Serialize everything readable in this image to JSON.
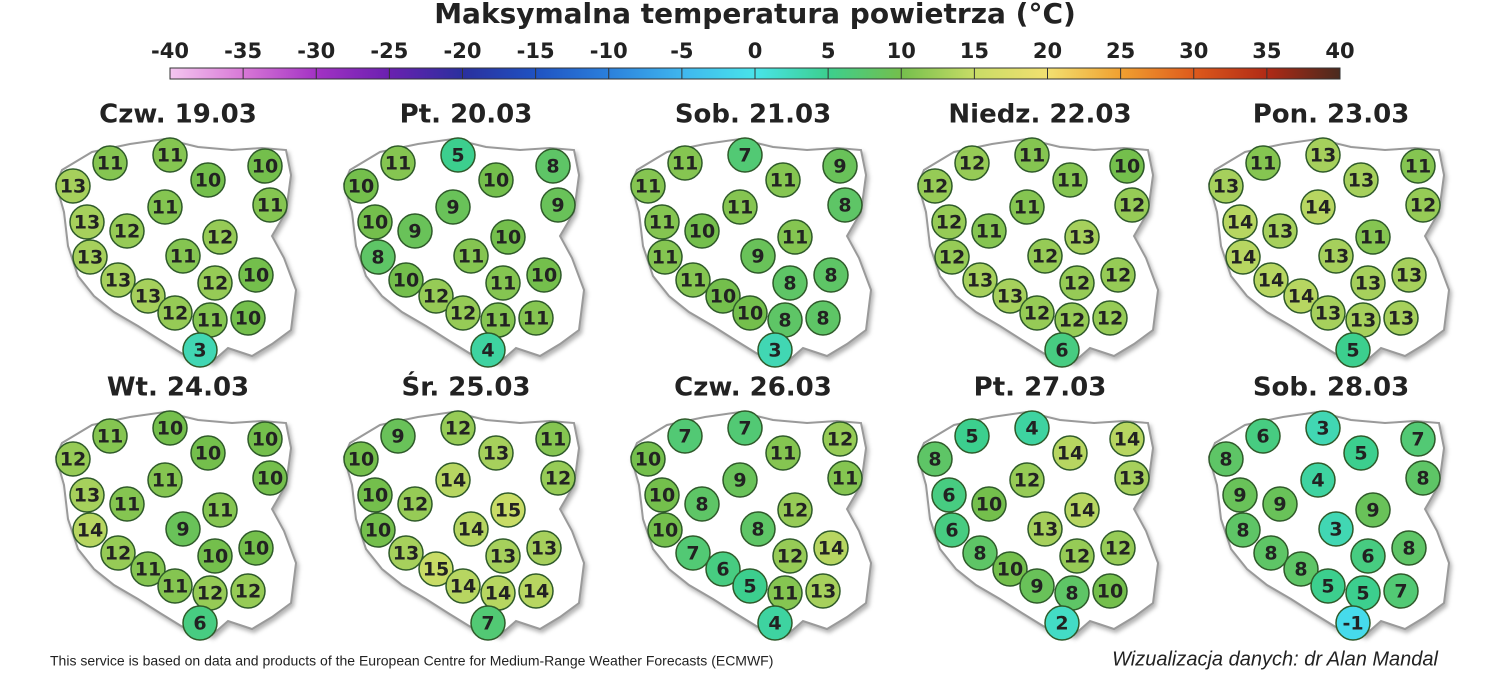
{
  "title": "Maksymalna temperatura powietrza (°C)",
  "colorbar": {
    "lim": [
      -40,
      40
    ],
    "ticks": [
      -40,
      -35,
      -30,
      -25,
      -20,
      -15,
      -10,
      -5,
      0,
      5,
      10,
      15,
      20,
      25,
      30,
      35,
      40
    ]
  },
  "colorscale": [
    {
      "value": -40,
      "color": "#f4c6f0"
    },
    {
      "value": -35,
      "color": "#d878d6"
    },
    {
      "value": -30,
      "color": "#a332c4"
    },
    {
      "value": -25,
      "color": "#6a20b0"
    },
    {
      "value": -20,
      "color": "#2a2f9e"
    },
    {
      "value": -15,
      "color": "#1f52c2"
    },
    {
      "value": -10,
      "color": "#2b80dc"
    },
    {
      "value": -5,
      "color": "#3fb6ee"
    },
    {
      "value": 0,
      "color": "#48e4ea"
    },
    {
      "value": 5,
      "color": "#3ccf8e"
    },
    {
      "value": 10,
      "color": "#74bf4c"
    },
    {
      "value": 15,
      "color": "#c8dc66"
    },
    {
      "value": 20,
      "color": "#f2e070"
    },
    {
      "value": 25,
      "color": "#f0a030"
    },
    {
      "value": 30,
      "color": "#de5a1c"
    },
    {
      "value": 35,
      "color": "#b02a15"
    },
    {
      "value": 40,
      "color": "#4a2a1e"
    }
  ],
  "maps": [
    {
      "title": "Czw. 19.03",
      "values": [
        11,
        11,
        13,
        10,
        10,
        11,
        11,
        13,
        12,
        12,
        13,
        11,
        10,
        12,
        13,
        13,
        12,
        11,
        10,
        3
      ]
    },
    {
      "title": "Pt. 20.03",
      "values": [
        11,
        5,
        10,
        10,
        8,
        9,
        9,
        10,
        9,
        10,
        8,
        11,
        10,
        11,
        10,
        12,
        12,
        11,
        11,
        4
      ]
    },
    {
      "title": "Sob. 21.03",
      "values": [
        11,
        7,
        11,
        11,
        9,
        8,
        11,
        11,
        10,
        11,
        11,
        9,
        8,
        8,
        11,
        10,
        10,
        8,
        8,
        3
      ]
    },
    {
      "title": "Niedz. 22.03",
      "values": [
        12,
        11,
        12,
        11,
        10,
        12,
        11,
        12,
        11,
        13,
        12,
        12,
        12,
        12,
        13,
        13,
        12,
        12,
        12,
        6
      ]
    },
    {
      "title": "Pon. 23.03",
      "values": [
        11,
        13,
        13,
        13,
        11,
        12,
        14,
        14,
        13,
        11,
        14,
        13,
        13,
        13,
        14,
        14,
        13,
        13,
        13,
        5
      ]
    },
    {
      "title": "Wt. 24.03",
      "values": [
        11,
        10,
        12,
        10,
        10,
        10,
        11,
        13,
        11,
        11,
        14,
        9,
        10,
        10,
        12,
        11,
        11,
        12,
        12,
        6
      ]
    },
    {
      "title": "Śr. 25.03",
      "values": [
        9,
        12,
        10,
        13,
        11,
        12,
        14,
        10,
        12,
        15,
        10,
        14,
        13,
        13,
        13,
        15,
        14,
        14,
        14,
        7
      ]
    },
    {
      "title": "Czw. 26.03",
      "values": [
        7,
        7,
        10,
        11,
        12,
        11,
        9,
        10,
        8,
        12,
        10,
        8,
        14,
        12,
        7,
        6,
        5,
        11,
        13,
        4
      ]
    },
    {
      "title": "Pt. 27.03",
      "values": [
        5,
        4,
        8,
        14,
        14,
        13,
        12,
        6,
        10,
        14,
        6,
        13,
        12,
        12,
        8,
        10,
        9,
        8,
        10,
        2
      ]
    },
    {
      "title": "Sob. 28.03",
      "values": [
        6,
        3,
        8,
        5,
        7,
        8,
        4,
        9,
        9,
        9,
        8,
        3,
        8,
        6,
        8,
        8,
        5,
        5,
        7,
        -1
      ]
    }
  ],
  "footer": {
    "source": "This service is based on data and products of the European Centre for Medium-Range Weather Forecasts (ECMWF)",
    "credit": "Wizualizacja danych: dr Alan Mandal"
  }
}
